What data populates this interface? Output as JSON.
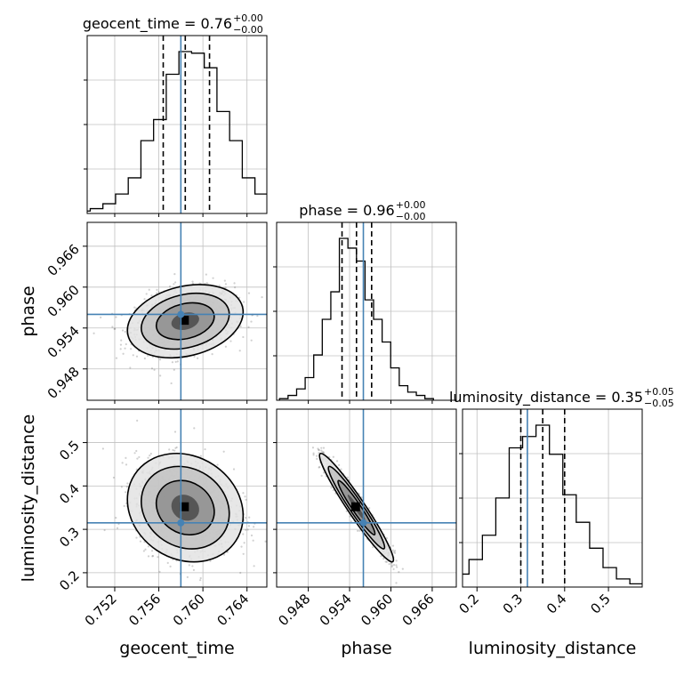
{
  "chart_data": {
    "type": "corner",
    "parameters": [
      "geocent_time",
      "phase",
      "luminosity_distance"
    ],
    "titles": [
      {
        "param": "geocent_time",
        "label": "geocent_time",
        "value": "0.76",
        "plus": "+0.00",
        "minus": "−0.00"
      },
      {
        "param": "phase",
        "label": "phase",
        "value": "0.96",
        "plus": "+0.00",
        "minus": "−0.00"
      },
      {
        "param": "luminosity_distance",
        "label": "luminosity_distance",
        "value": "0.35",
        "plus": "+0.05",
        "minus": "−0.05"
      }
    ],
    "axis_labels": [
      "geocent_time",
      "phase",
      "luminosity_distance"
    ],
    "ranges": {
      "geocent_time": [
        0.7495,
        0.7658
      ],
      "phase": [
        0.9434,
        0.9695
      ],
      "luminosity_distance": [
        0.167,
        0.577
      ]
    },
    "ticks": {
      "geocent_time": [
        {
          "v": 0.752,
          "label": "0.752"
        },
        {
          "v": 0.756,
          "label": "0.756"
        },
        {
          "v": 0.76,
          "label": "0.760"
        },
        {
          "v": 0.764,
          "label": "0.764"
        }
      ],
      "phase": [
        {
          "v": 0.948,
          "label": "0.948"
        },
        {
          "v": 0.954,
          "label": "0.954"
        },
        {
          "v": 0.96,
          "label": "0.960"
        },
        {
          "v": 0.966,
          "label": "0.966"
        }
      ],
      "luminosity_distance": [
        {
          "v": 0.2,
          "label": "0.2"
        },
        {
          "v": 0.3,
          "label": "0.3"
        },
        {
          "v": 0.4,
          "label": "0.4"
        },
        {
          "v": 0.5,
          "label": "0.5"
        }
      ]
    },
    "truths": {
      "geocent_time": 0.758,
      "phase": 0.956,
      "luminosity_distance": 0.315
    },
    "quantiles": {
      "geocent_time": [
        0.7564,
        0.7584,
        0.7606
      ],
      "phase": [
        0.9529,
        0.955,
        0.9572
      ],
      "luminosity_distance": [
        0.3,
        0.35,
        0.4
      ]
    },
    "histograms": {
      "geocent_time": [
        0.01,
        0.015,
        0.03,
        0.06,
        0.12,
        0.22,
        0.45,
        0.58,
        0.86,
        1.0,
        0.99,
        0.9,
        0.63,
        0.45,
        0.22,
        0.12,
        0.06,
        0.02,
        0.008
      ],
      "phase": [
        0.01,
        0.03,
        0.07,
        0.14,
        0.28,
        0.5,
        0.67,
        1.0,
        0.94,
        0.86,
        0.62,
        0.5,
        0.36,
        0.2,
        0.09,
        0.05,
        0.03,
        0.01
      ],
      "luminosity_distance": [
        0.01,
        0.04,
        0.08,
        0.17,
        0.32,
        0.55,
        0.86,
        0.93,
        1.0,
        0.82,
        0.57,
        0.4,
        0.24,
        0.12,
        0.05,
        0.02,
        0.01
      ]
    },
    "correlations": {
      "geocent_time|phase": 0.25,
      "geocent_time|luminosity_distance": -0.15,
      "phase|luminosity_distance": -0.96
    },
    "colors": {
      "truth": "#4682b4",
      "hist": "#000000",
      "grid": "#c0c0c0",
      "points": "#555555"
    },
    "grid": true
  }
}
